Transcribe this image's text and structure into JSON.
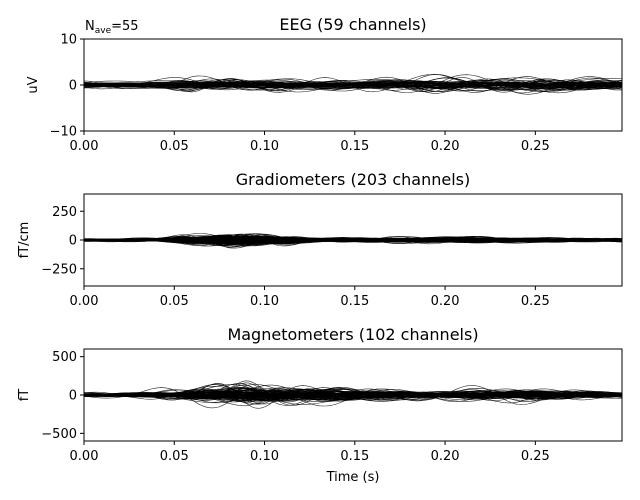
{
  "figure": {
    "nave_label": "N",
    "nave_sub": "ave",
    "nave_value": "=55",
    "xlabel": "Time (s)"
  },
  "chart_data": [
    {
      "type": "line",
      "title": "EEG (59 channels)",
      "ylabel": "uV",
      "xlim": [
        0.0,
        0.298
      ],
      "ylim": [
        -10,
        10
      ],
      "xticks": [
        0.0,
        0.05,
        0.1,
        0.15,
        0.2,
        0.25
      ],
      "xtick_labels": [
        "0.00",
        "0.05",
        "0.10",
        "0.15",
        "0.20",
        "0.25"
      ],
      "yticks": [
        -10,
        0,
        10
      ],
      "ytick_labels": [
        "−10",
        "0",
        "10"
      ],
      "n_channels": 59,
      "line_color": "#000000",
      "peak_amplitude": 3,
      "envelope": {
        "t": [
          0.0,
          0.03,
          0.06,
          0.1,
          0.15,
          0.2,
          0.25,
          0.298
        ],
        "amp": [
          1.4,
          1.0,
          2.4,
          2.0,
          2.0,
          2.6,
          2.2,
          2.0
        ]
      }
    },
    {
      "type": "line",
      "title": "Gradiometers (203 channels)",
      "ylabel": "fT/cm",
      "xlim": [
        0.0,
        0.298
      ],
      "ylim": [
        -400,
        400
      ],
      "xticks": [
        0.0,
        0.05,
        0.1,
        0.15,
        0.2,
        0.25
      ],
      "xtick_labels": [
        "0.00",
        "0.05",
        "0.10",
        "0.15",
        "0.20",
        "0.25"
      ],
      "yticks": [
        -250,
        0,
        250
      ],
      "ytick_labels": [
        "−250",
        "0",
        "250"
      ],
      "n_channels": 203,
      "line_color": "#000000",
      "peak_amplitude": 90,
      "envelope": {
        "t": [
          0.0,
          0.04,
          0.08,
          0.1,
          0.13,
          0.16,
          0.22,
          0.298
        ],
        "amp": [
          12,
          18,
          85,
          65,
          25,
          30,
          30,
          18
        ]
      }
    },
    {
      "type": "line",
      "title": "Magnetometers (102 channels)",
      "ylabel": "fT",
      "xlim": [
        0.0,
        0.298
      ],
      "ylim": [
        -600,
        600
      ],
      "xticks": [
        0.0,
        0.05,
        0.1,
        0.15,
        0.2,
        0.25
      ],
      "xtick_labels": [
        "0.00",
        "0.05",
        "0.10",
        "0.15",
        "0.20",
        "0.25"
      ],
      "yticks": [
        -500,
        0,
        500
      ],
      "ytick_labels": [
        "−500",
        "0",
        "500"
      ],
      "n_channels": 102,
      "line_color": "#000000",
      "peak_amplitude": 230,
      "envelope": {
        "t": [
          0.0,
          0.03,
          0.06,
          0.09,
          0.12,
          0.15,
          0.19,
          0.24,
          0.298
        ],
        "amp": [
          35,
          45,
          110,
          230,
          160,
          130,
          70,
          120,
          55
        ]
      }
    }
  ]
}
